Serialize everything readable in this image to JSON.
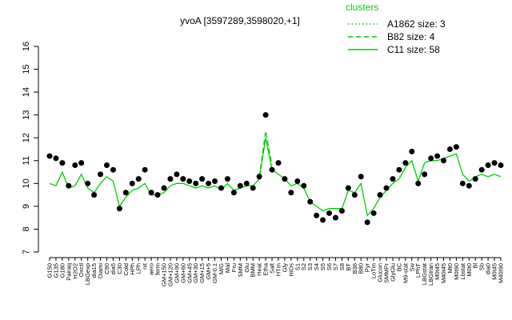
{
  "chart_data": {
    "type": "line",
    "title": "yvoA [3597289,3598020,+1]",
    "legend_title": "clusters",
    "legend_position": "top-right",
    "point_color": "#000000",
    "categories": [
      "G150",
      "G135",
      "G180",
      "Pairaq",
      "H2O2",
      "Oxctl",
      "LBGexp",
      "dia15",
      "Diami",
      "C90",
      "dia5",
      "C30",
      "Cold",
      "HPh",
      "LPh",
      "nit",
      "aero",
      "ferm",
      "GM+150",
      "GM+120",
      "GM+90",
      "GM+60",
      "GM+45",
      "GM+30",
      "GM+15",
      "GM+5",
      "GM-0.1",
      "M/G",
      "Mal",
      "Fru",
      "SMM",
      "Glu",
      "BMM",
      "Heat",
      "Etha",
      "Salt",
      "HTm",
      "Gly",
      "HiOs",
      "S1",
      "S2",
      "S3",
      "S4",
      "S5",
      "S6",
      "S7",
      "S8",
      "BT",
      "B36",
      "B80",
      "Pyr",
      "LoTm",
      "Glucon",
      "SMMPr",
      "GlyGlu",
      "BC",
      "M9-stat",
      "Sw",
      "LPhT",
      "LBGstat",
      "LBGtran",
      "M0t45",
      "M40t45",
      "Mt0",
      "M0t90",
      "Lbstat",
      "M0t0",
      "Bl",
      "Sb",
      "dia0",
      "M0t45",
      "M40t90"
    ],
    "values": [
      11.2,
      11.1,
      10.9,
      9.9,
      10.8,
      10.9,
      10.0,
      9.5,
      10.4,
      10.8,
      10.6,
      8.9,
      9.6,
      10.0,
      10.2,
      10.6,
      9.6,
      9.5,
      9.8,
      10.2,
      10.4,
      10.2,
      10.1,
      10.0,
      10.2,
      10.0,
      10.1,
      9.8,
      10.2,
      9.6,
      9.9,
      10.0,
      9.8,
      10.3,
      13.0,
      10.6,
      10.9,
      10.2,
      9.6,
      10.1,
      9.9,
      9.2,
      8.6,
      8.4,
      8.7,
      8.5,
      8.8,
      9.8,
      9.5,
      10.3,
      8.3,
      8.7,
      9.5,
      9.8,
      10.2,
      10.6,
      10.9,
      11.4,
      10.0,
      10.4,
      11.1,
      11.2,
      11.0,
      11.5,
      11.6,
      10.0,
      9.9,
      10.2,
      10.6,
      10.8,
      10.9,
      10.8
    ],
    "series": [
      {
        "name": "A1862 size: 3",
        "color": "#00cc00",
        "dash": "dotted",
        "values": [
          null,
          null,
          null,
          null,
          null,
          null,
          null,
          null,
          null,
          null,
          null,
          null,
          null,
          null,
          null,
          null,
          null,
          null,
          null,
          null,
          null,
          null,
          null,
          null,
          null,
          null,
          null,
          null,
          null,
          null,
          null,
          null,
          null,
          null,
          null,
          null,
          null,
          null,
          null,
          null,
          null,
          null,
          null,
          null,
          null,
          null,
          null,
          null,
          null,
          null,
          null,
          null,
          null,
          null,
          null,
          null,
          null,
          null,
          null,
          null,
          null,
          null,
          null,
          null,
          null,
          null,
          null,
          null,
          null,
          null,
          null,
          null
        ]
      },
      {
        "name": "B82 size: 4",
        "color": "#00cc00",
        "dash": "dashed",
        "values": [
          null,
          null,
          null,
          null,
          null,
          null,
          null,
          null,
          null,
          null,
          null,
          null,
          null,
          null,
          null,
          null,
          null,
          null,
          null,
          null,
          null,
          null,
          null,
          null,
          null,
          null,
          null,
          null,
          null,
          null,
          null,
          null,
          null,
          10.3,
          12.3,
          10.8,
          null,
          null,
          null,
          null,
          null,
          null,
          null,
          null,
          null,
          null,
          null,
          null,
          null,
          null,
          null,
          null,
          null,
          null,
          null,
          null,
          null,
          null,
          null,
          null,
          null,
          null,
          null,
          null,
          null,
          null,
          null,
          null,
          null,
          null,
          null,
          null
        ]
      },
      {
        "name": "C11 size: 58",
        "color": "#00cc00",
        "dash": "solid",
        "values": [
          10.0,
          9.9,
          10.5,
          9.8,
          9.9,
          10.4,
          9.8,
          9.6,
          10.0,
          10.3,
          10.1,
          9.0,
          9.4,
          9.7,
          9.8,
          10.0,
          9.5,
          9.5,
          9.6,
          9.9,
          10.0,
          10.0,
          9.9,
          9.8,
          9.9,
          9.8,
          9.9,
          9.7,
          10.0,
          9.7,
          9.8,
          9.9,
          9.9,
          10.2,
          12.0,
          10.6,
          10.4,
          10.2,
          9.9,
          10.0,
          9.8,
          9.2,
          9.0,
          8.8,
          8.9,
          8.9,
          8.9,
          9.7,
          9.6,
          10.0,
          8.6,
          8.9,
          9.4,
          9.7,
          10.0,
          10.2,
          10.7,
          11.0,
          10.1,
          10.9,
          11.0,
          11.0,
          11.1,
          11.2,
          11.3,
          10.4,
          10.1,
          10.3,
          10.4,
          10.3,
          10.4,
          10.3
        ]
      }
    ],
    "ylim": [
      7,
      16
    ],
    "yticks": [
      7,
      8,
      9,
      10,
      11,
      12,
      13,
      14,
      15,
      16
    ]
  }
}
